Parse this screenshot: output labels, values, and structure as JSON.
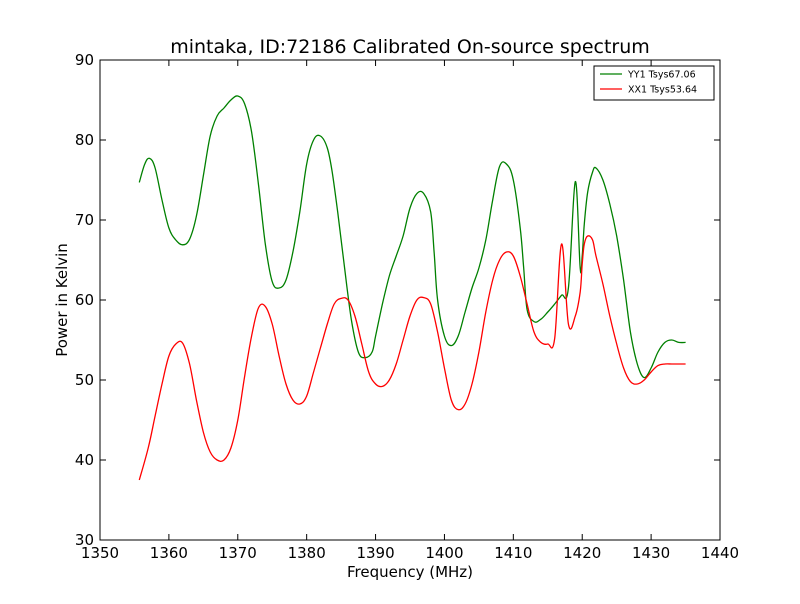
{
  "chart_data": {
    "type": "line",
    "title": "mintaka, ID:72186 Calibrated On-source spectrum",
    "xlabel": "Frequency (MHz)",
    "ylabel": "Power in Kelvin",
    "xlim": [
      1350,
      1440
    ],
    "ylim": [
      30,
      90
    ],
    "xticks": [
      1350,
      1360,
      1370,
      1380,
      1390,
      1400,
      1410,
      1420,
      1430,
      1440
    ],
    "yticks": [
      30,
      40,
      50,
      60,
      70,
      80,
      90
    ],
    "grid": false,
    "legend_position": "top-right",
    "series": [
      {
        "name": "YY1 Tsys67.06",
        "color": "#008000",
        "x": [
          1355.7,
          1356.5,
          1357.2,
          1358.0,
          1359.0,
          1360.0,
          1361.0,
          1362.0,
          1363.0,
          1364.0,
          1365.0,
          1366.0,
          1367.0,
          1368.0,
          1369.0,
          1370.0,
          1371.0,
          1372.0,
          1373.0,
          1374.0,
          1375.0,
          1376.0,
          1377.0,
          1378.0,
          1379.0,
          1380.0,
          1381.0,
          1382.0,
          1383.0,
          1383.7,
          1384.5,
          1385.5,
          1386.5,
          1387.5,
          1388.5,
          1389.5,
          1390.0,
          1391.0,
          1392.0,
          1393.0,
          1394.0,
          1395.0,
          1396.0,
          1397.0,
          1398.0,
          1398.5,
          1399.0,
          1400.0,
          1401.0,
          1402.0,
          1403.0,
          1404.0,
          1405.0,
          1406.0,
          1407.0,
          1408.0,
          1409.0,
          1410.0,
          1411.0,
          1411.5,
          1412.0,
          1413.0,
          1414.0,
          1415.0,
          1416.0,
          1417.0,
          1418.0,
          1419.0,
          1419.7,
          1420.0,
          1420.3,
          1420.8,
          1421.5,
          1422.0,
          1423.0,
          1424.0,
          1425.0,
          1426.0,
          1427.0,
          1428.0,
          1429.0,
          1430.0,
          1431.0,
          1432.0,
          1433.0,
          1434.0,
          1435.0
        ],
        "y": [
          74.7,
          77.0,
          77.7,
          76.5,
          72.5,
          69.0,
          67.5,
          66.9,
          67.6,
          70.5,
          75.5,
          80.5,
          83.0,
          84.0,
          85.0,
          85.5,
          84.5,
          81.0,
          74.5,
          67.0,
          62.3,
          61.5,
          62.5,
          66.0,
          71.0,
          77.0,
          80.0,
          80.5,
          79.0,
          76.0,
          71.0,
          64.0,
          57.5,
          53.5,
          52.8,
          53.5,
          55.5,
          59.5,
          63.0,
          65.5,
          68.0,
          71.5,
          73.3,
          73.3,
          71.0,
          66.0,
          60.0,
          55.5,
          54.3,
          55.5,
          58.5,
          61.5,
          64.0,
          67.5,
          72.5,
          76.7,
          77.0,
          75.0,
          69.0,
          64.0,
          58.8,
          57.3,
          57.6,
          58.5,
          59.5,
          60.6,
          61.5,
          74.8,
          64.0,
          65.5,
          69.5,
          73.5,
          76.0,
          76.5,
          75.0,
          72.0,
          68.0,
          62.5,
          56.0,
          52.0,
          50.3,
          51.5,
          53.5,
          54.7,
          55.0,
          54.7,
          54.7
        ]
      },
      {
        "name": "XX1 Tsys53.64",
        "color": "#ff0000",
        "x": [
          1355.7,
          1357.0,
          1358.0,
          1359.0,
          1360.0,
          1361.0,
          1362.0,
          1363.0,
          1364.0,
          1365.0,
          1366.0,
          1367.0,
          1368.0,
          1369.0,
          1370.0,
          1371.0,
          1372.0,
          1373.0,
          1374.0,
          1375.0,
          1376.0,
          1377.0,
          1378.0,
          1379.0,
          1380.0,
          1381.0,
          1382.0,
          1383.0,
          1384.0,
          1385.0,
          1386.0,
          1387.0,
          1388.0,
          1389.0,
          1390.0,
          1391.0,
          1392.0,
          1393.0,
          1394.0,
          1395.0,
          1396.0,
          1397.0,
          1398.0,
          1399.0,
          1400.0,
          1401.0,
          1402.0,
          1403.0,
          1404.0,
          1405.0,
          1406.0,
          1407.0,
          1408.0,
          1409.0,
          1410.0,
          1411.0,
          1412.0,
          1413.0,
          1414.0,
          1415.0,
          1416.0,
          1417.0,
          1418.0,
          1419.0,
          1419.7,
          1420.0,
          1420.3,
          1420.8,
          1421.5,
          1422.0,
          1423.0,
          1424.0,
          1425.0,
          1426.0,
          1427.0,
          1428.0,
          1429.0,
          1430.0,
          1431.0,
          1432.0,
          1433.0,
          1434.0,
          1435.0
        ],
        "y": [
          37.5,
          41.5,
          45.5,
          49.5,
          53.0,
          54.5,
          54.6,
          52.0,
          47.5,
          43.5,
          41.0,
          40.0,
          40.0,
          41.5,
          45.0,
          50.5,
          55.5,
          59.0,
          59.2,
          57.0,
          53.0,
          49.5,
          47.5,
          47.0,
          48.0,
          51.0,
          54.0,
          57.0,
          59.5,
          60.2,
          60.0,
          58.0,
          54.5,
          51.0,
          49.5,
          49.2,
          50.0,
          52.0,
          55.0,
          58.0,
          60.0,
          60.3,
          59.5,
          56.0,
          51.5,
          47.5,
          46.3,
          47.0,
          49.5,
          53.5,
          58.5,
          62.5,
          65.0,
          66.0,
          65.5,
          63.0,
          59.5,
          56.0,
          54.7,
          54.5,
          55.2,
          67.0,
          57.0,
          58.0,
          61.0,
          64.5,
          67.0,
          68.0,
          67.5,
          65.5,
          62.0,
          58.0,
          54.5,
          51.5,
          49.8,
          49.5,
          50.0,
          51.0,
          51.8,
          52.0,
          52.0,
          52.0,
          52.0
        ]
      }
    ]
  }
}
